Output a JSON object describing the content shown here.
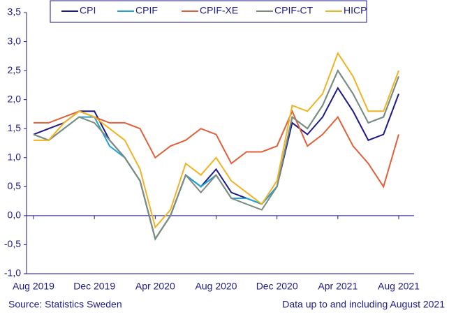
{
  "chart_data": {
    "type": "line",
    "categories": [
      "Aug 2019",
      null,
      null,
      null,
      "Dec 2019",
      null,
      null,
      null,
      "Apr 2020",
      null,
      null,
      null,
      "Aug 2020",
      null,
      null,
      null,
      "Dec 2020",
      null,
      null,
      null,
      "Apr 2021",
      null,
      null,
      null,
      "Aug 2021"
    ],
    "series": [
      {
        "name": "CPI",
        "color": "#1c1a86",
        "values": [
          1.4,
          1.5,
          1.6,
          1.8,
          1.8,
          1.3,
          1.0,
          0.6,
          -0.4,
          0.0,
          0.7,
          0.5,
          0.8,
          0.4,
          0.3,
          0.2,
          0.5,
          1.6,
          1.4,
          1.7,
          2.2,
          1.8,
          1.3,
          1.4,
          2.1
        ]
      },
      {
        "name": "CPIF",
        "color": "#1fa4d8",
        "values": [
          1.4,
          1.3,
          1.5,
          1.7,
          1.7,
          1.2,
          1.0,
          0.6,
          -0.4,
          0.0,
          0.7,
          0.5,
          0.7,
          0.3,
          0.3,
          0.2,
          0.5,
          1.7,
          1.5,
          1.9,
          2.5,
          2.1,
          1.6,
          1.7,
          2.4
        ]
      },
      {
        "name": "CPIF-XE",
        "color": "#e0603a",
        "values": [
          1.6,
          1.6,
          1.7,
          1.8,
          1.7,
          1.6,
          1.6,
          1.5,
          1.0,
          1.2,
          1.3,
          1.5,
          1.4,
          0.9,
          1.1,
          1.1,
          1.2,
          1.8,
          1.2,
          1.4,
          1.7,
          1.2,
          0.9,
          0.5,
          1.4
        ]
      },
      {
        "name": "CPIF-CT",
        "color": "#7d8a7d",
        "values": [
          1.4,
          1.3,
          1.5,
          1.7,
          1.6,
          1.3,
          1.0,
          0.6,
          -0.4,
          0.0,
          0.7,
          0.4,
          0.7,
          0.3,
          0.2,
          0.1,
          0.5,
          1.7,
          1.5,
          1.9,
          2.5,
          2.1,
          1.6,
          1.7,
          2.4
        ]
      },
      {
        "name": "HICP",
        "color": "#f0b323",
        "values": [
          1.3,
          1.3,
          1.6,
          1.8,
          1.7,
          1.5,
          1.3,
          0.8,
          -0.2,
          0.1,
          0.9,
          0.7,
          1.0,
          0.6,
          0.4,
          0.2,
          0.6,
          1.9,
          1.8,
          2.1,
          2.8,
          2.4,
          1.8,
          1.8,
          2.5
        ]
      }
    ],
    "ylim": [
      -1.0,
      3.5
    ],
    "yticks": [
      {
        "value": -1.0,
        "label": "-1,0"
      },
      {
        "value": -0.5,
        "label": "-0,5"
      },
      {
        "value": 0.0,
        "label": "0,0"
      },
      {
        "value": 0.5,
        "label": "0,5"
      },
      {
        "value": 1.0,
        "label": "1,0"
      },
      {
        "value": 1.5,
        "label": "1,5"
      },
      {
        "value": 2.0,
        "label": "2,0"
      },
      {
        "value": 2.5,
        "label": "2,5"
      },
      {
        "value": 3.0,
        "label": "3,0"
      },
      {
        "value": 3.5,
        "label": "3,5"
      }
    ],
    "legend": "top",
    "source": "Source: Statistics Sweden",
    "note": "Data up to and including August 2021"
  }
}
